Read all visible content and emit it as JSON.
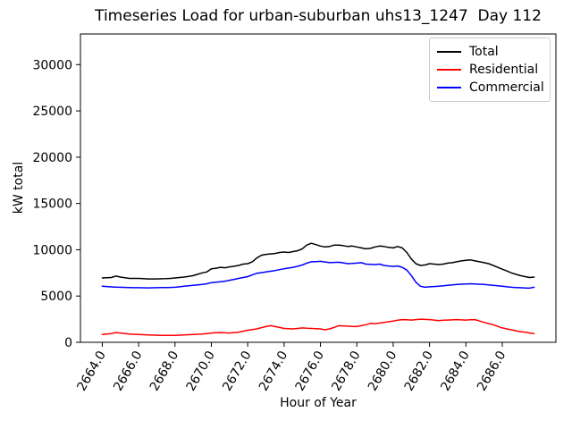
{
  "chart_data": {
    "type": "line",
    "title": "Timeseries Load for urban-suburban uhs13_1247  Day 112",
    "xlabel": "Hour of Year",
    "ylabel": "kW total",
    "xlim": [
      2662.8,
      2688.95
    ],
    "ylim": [
      0,
      33310
    ],
    "grid": false,
    "legend_position": "upper right",
    "x_ticks": [
      {
        "value": 2664,
        "label": "2664.0"
      },
      {
        "value": 2666,
        "label": "2666.0"
      },
      {
        "value": 2668,
        "label": "2668.0"
      },
      {
        "value": 2670,
        "label": "2670.0"
      },
      {
        "value": 2672,
        "label": "2672.0"
      },
      {
        "value": 2674,
        "label": "2674.0"
      },
      {
        "value": 2676,
        "label": "2676.0"
      },
      {
        "value": 2678,
        "label": "2678.0"
      },
      {
        "value": 2680,
        "label": "2680.0"
      },
      {
        "value": 2682,
        "label": "2682.0"
      },
      {
        "value": 2684,
        "label": "2684.0"
      },
      {
        "value": 2686,
        "label": "2686.0"
      }
    ],
    "y_ticks": [
      {
        "value": 0,
        "label": "0"
      },
      {
        "value": 5000,
        "label": "5000"
      },
      {
        "value": 10000,
        "label": "10000"
      },
      {
        "value": 15000,
        "label": "15000"
      },
      {
        "value": 20000,
        "label": "20000"
      },
      {
        "value": 25000,
        "label": "25000"
      },
      {
        "value": 30000,
        "label": "30000"
      }
    ],
    "x_start": 2664.0,
    "x_step": 0.25,
    "series": [
      {
        "name": "Total",
        "color": "#000000",
        "values": [
          6950,
          6980,
          7000,
          7150,
          7050,
          6970,
          6900,
          6900,
          6900,
          6870,
          6850,
          6850,
          6850,
          6860,
          6870,
          6900,
          6950,
          7000,
          7050,
          7120,
          7200,
          7350,
          7500,
          7600,
          7950,
          8000,
          8100,
          8050,
          8150,
          8220,
          8300,
          8450,
          8500,
          8700,
          9100,
          9400,
          9500,
          9550,
          9600,
          9700,
          9750,
          9700,
          9800,
          9900,
          10100,
          10500,
          10700,
          10550,
          10400,
          10300,
          10350,
          10500,
          10500,
          10450,
          10350,
          10400,
          10300,
          10200,
          10100,
          10150,
          10300,
          10400,
          10350,
          10250,
          10200,
          10350,
          10200,
          9700,
          9000,
          8500,
          8300,
          8350,
          8500,
          8450,
          8400,
          8450,
          8550,
          8600,
          8700,
          8800,
          8850,
          8900,
          8800,
          8700,
          8600,
          8500,
          8300,
          8100,
          7900,
          7700,
          7500,
          7350,
          7200,
          7100,
          7000,
          7050
        ]
      },
      {
        "name": "Residential",
        "color": "#ff0000",
        "values": [
          850,
          900,
          950,
          1050,
          1000,
          950,
          900,
          870,
          850,
          820,
          800,
          780,
          760,
          750,
          750,
          750,
          750,
          770,
          800,
          820,
          850,
          870,
          900,
          950,
          1000,
          1030,
          1050,
          1020,
          1000,
          1050,
          1100,
          1200,
          1300,
          1380,
          1450,
          1580,
          1700,
          1800,
          1700,
          1600,
          1500,
          1470,
          1450,
          1500,
          1550,
          1520,
          1500,
          1470,
          1450,
          1350,
          1450,
          1600,
          1800,
          1780,
          1750,
          1720,
          1700,
          1800,
          1900,
          2050,
          2000,
          2080,
          2150,
          2220,
          2300,
          2380,
          2450,
          2430,
          2400,
          2450,
          2500,
          2470,
          2450,
          2400,
          2350,
          2380,
          2400,
          2420,
          2450,
          2420,
          2400,
          2430,
          2450,
          2300,
          2150,
          2020,
          1900,
          1720,
          1550,
          1450,
          1350,
          1250,
          1150,
          1100,
          1000,
          950
        ]
      },
      {
        "name": "Commercial",
        "color": "#0000ff",
        "values": [
          6050,
          6020,
          5990,
          5960,
          5950,
          5930,
          5910,
          5900,
          5900,
          5890,
          5880,
          5890,
          5900,
          5910,
          5920,
          5930,
          5950,
          6000,
          6050,
          6100,
          6150,
          6200,
          6250,
          6320,
          6450,
          6500,
          6550,
          6600,
          6700,
          6800,
          6900,
          7000,
          7100,
          7280,
          7450,
          7520,
          7600,
          7680,
          7750,
          7850,
          7950,
          8020,
          8100,
          8220,
          8350,
          8550,
          8700,
          8720,
          8750,
          8680,
          8600,
          8630,
          8650,
          8580,
          8500,
          8520,
          8550,
          8600,
          8450,
          8420,
          8400,
          8450,
          8300,
          8250,
          8200,
          8250,
          8100,
          7800,
          7200,
          6500,
          6050,
          5950,
          6000,
          6020,
          6050,
          6100,
          6150,
          6200,
          6250,
          6280,
          6300,
          6320,
          6300,
          6280,
          6250,
          6200,
          6150,
          6100,
          6050,
          6000,
          5950,
          5920,
          5900,
          5870,
          5850,
          5950
        ]
      }
    ]
  }
}
